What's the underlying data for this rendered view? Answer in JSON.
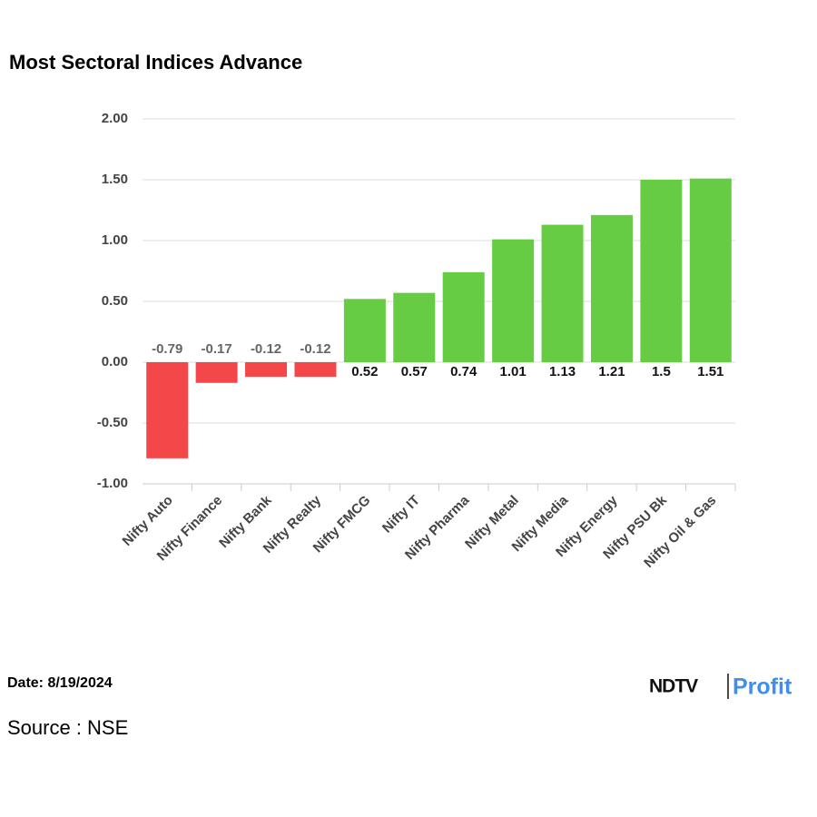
{
  "chart_data": {
    "type": "bar",
    "title": "Most Sectoral Indices Advance",
    "categories": [
      "Nifty Auto",
      "Nifty Finance",
      "Nifty Bank",
      "Nifty Realty",
      "Nifty FMCG",
      "Nifty IT",
      "Nifty Pharma",
      "Nifty Metal",
      "Nifty Media",
      "Nifty Energy",
      "Nifty PSU Bk",
      "Nifty Oil & Gas"
    ],
    "values": [
      -0.79,
      -0.17,
      -0.12,
      -0.12,
      0.52,
      0.57,
      0.74,
      1.01,
      1.13,
      1.21,
      1.5,
      1.51
    ],
    "colors": [
      "#f4474a",
      "#f4474a",
      "#f4474a",
      "#f4474a",
      "#66cc44",
      "#66cc44",
      "#66cc44",
      "#66cc44",
      "#66cc44",
      "#66cc44",
      "#66cc44",
      "#66cc44"
    ],
    "ylim": [
      -1,
      2
    ],
    "yticks": [
      {
        "value": -1,
        "label": "-1.00"
      },
      {
        "value": -0.5,
        "label": "-0.50"
      },
      {
        "value": 0,
        "label": "0.00"
      },
      {
        "value": 0.5,
        "label": "0.50"
      },
      {
        "value": 1,
        "label": "1.00"
      },
      {
        "value": 1.5,
        "label": "1.50"
      },
      {
        "value": 2,
        "label": "2.00"
      }
    ],
    "grid": true
  },
  "footer": {
    "date": "Date: 8/19/2024",
    "source": "Source : NSE",
    "logo": [
      "NDTV",
      "Profit"
    ]
  }
}
